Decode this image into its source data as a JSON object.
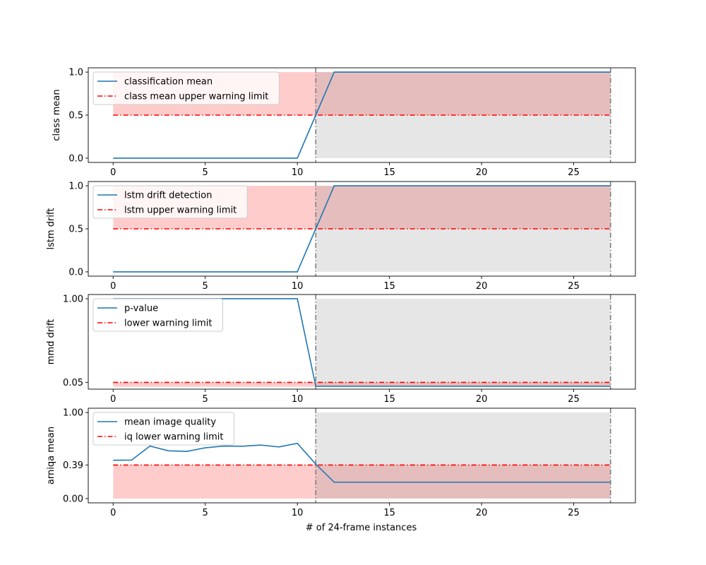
{
  "chart_data": [
    {
      "type": "line",
      "ylabel": "class mean",
      "xlabel": "",
      "xlim": [
        -1.35,
        28.35
      ],
      "ylim": [
        -0.05,
        1.05
      ],
      "xticks": [
        "0",
        "5",
        "10",
        "15",
        "20",
        "25"
      ],
      "yticks": [
        "0.0",
        "0.5",
        "1.0"
      ],
      "ytick_values": [
        0.0,
        0.5,
        1.0
      ],
      "shade_below": false,
      "warning_limit": 0.5,
      "drift_start": 11,
      "drift_end": 27,
      "legend_position": "upper-left",
      "series": [
        {
          "name": "classification mean",
          "color": "#1f77b4",
          "style": "solid",
          "x": [
            0,
            1,
            2,
            3,
            4,
            5,
            6,
            7,
            8,
            9,
            10,
            11,
            12,
            13,
            14,
            15,
            16,
            17,
            18,
            19,
            20,
            21,
            22,
            23,
            24,
            25,
            26,
            27
          ],
          "y": [
            0,
            0,
            0,
            0,
            0,
            0,
            0,
            0,
            0,
            0,
            0,
            0.5,
            1,
            1,
            1,
            1,
            1,
            1,
            1,
            1,
            1,
            1,
            1,
            1,
            1,
            1,
            1,
            1
          ]
        },
        {
          "name": "class mean upper warning limit",
          "color": "#ff0000",
          "style": "dashdot"
        }
      ]
    },
    {
      "type": "line",
      "ylabel": "lstm drift",
      "xlabel": "",
      "xlim": [
        -1.35,
        28.35
      ],
      "ylim": [
        -0.05,
        1.05
      ],
      "xticks": [
        "0",
        "5",
        "10",
        "15",
        "20",
        "25"
      ],
      "yticks": [
        "0.0",
        "0.5",
        "1.0"
      ],
      "ytick_values": [
        0.0,
        0.5,
        1.0
      ],
      "shade_below": false,
      "warning_limit": 0.5,
      "drift_start": 11,
      "drift_end": 27,
      "legend_position": "upper-left",
      "series": [
        {
          "name": "lstm drift detection",
          "color": "#1f77b4",
          "style": "solid",
          "x": [
            0,
            1,
            2,
            3,
            4,
            5,
            6,
            7,
            8,
            9,
            10,
            11,
            12,
            13,
            14,
            15,
            16,
            17,
            18,
            19,
            20,
            21,
            22,
            23,
            24,
            25,
            26,
            27
          ],
          "y": [
            0,
            0,
            0,
            0,
            0,
            0,
            0,
            0,
            0,
            0,
            0,
            0.5,
            1,
            1,
            1,
            1,
            1,
            1,
            1,
            1,
            1,
            1,
            1,
            1,
            1,
            1,
            1,
            1
          ]
        },
        {
          "name": "lstm upper warning limit",
          "color": "#ff0000",
          "style": "dashdot"
        }
      ]
    },
    {
      "type": "line",
      "ylabel": "mmd drift",
      "xlabel": "",
      "xlim": [
        -1.35,
        28.35
      ],
      "ylim": [
        -0.027,
        1.048
      ],
      "xticks": [
        "0",
        "5",
        "10",
        "15",
        "20",
        "25"
      ],
      "yticks": [
        "0.05",
        "1.00"
      ],
      "ytick_values": [
        0.05,
        1.0
      ],
      "shade_below": true,
      "warning_limit": 0.05,
      "drift_start": 11,
      "drift_end": 27,
      "legend_position": "upper-left",
      "series": [
        {
          "name": "p-value",
          "color": "#1f77b4",
          "style": "solid",
          "x": [
            0,
            1,
            2,
            3,
            4,
            5,
            6,
            7,
            8,
            9,
            10,
            11,
            12,
            13,
            14,
            15,
            16,
            17,
            18,
            19,
            20,
            21,
            22,
            23,
            24,
            25,
            26,
            27
          ],
          "y": [
            1,
            1,
            1,
            1,
            1,
            1,
            1,
            1,
            1,
            1,
            1,
            0.005,
            0.005,
            0.005,
            0.005,
            0.005,
            0.005,
            0.005,
            0.005,
            0.005,
            0.005,
            0.005,
            0.005,
            0.005,
            0.005,
            0.005,
            0.005,
            0.005
          ]
        },
        {
          "name": "lower warning limit",
          "color": "#ff0000",
          "style": "dashdot"
        }
      ]
    },
    {
      "type": "line",
      "ylabel": "arniqa mean",
      "xlabel": "# of 24-frame instances",
      "xlim": [
        -1.35,
        28.35
      ],
      "ylim": [
        -0.05,
        1.05
      ],
      "xticks": [
        "0",
        "5",
        "10",
        "15",
        "20",
        "25"
      ],
      "yticks": [
        "0.00",
        "0.39",
        "1.00"
      ],
      "ytick_values": [
        0.0,
        0.39,
        1.0
      ],
      "shade_below": true,
      "warning_limit": 0.39,
      "drift_start": 11,
      "drift_end": 27,
      "legend_position": "upper-left",
      "series": [
        {
          "name": "mean image quality",
          "color": "#1f77b4",
          "style": "solid",
          "x": [
            0,
            1,
            2,
            3,
            4,
            5,
            6,
            7,
            8,
            9,
            10,
            11,
            12,
            13,
            14,
            15,
            16,
            17,
            18,
            19,
            20,
            21,
            22,
            23,
            24,
            25,
            26,
            27
          ],
          "y": [
            0.445,
            0.447,
            0.61,
            0.555,
            0.548,
            0.59,
            0.61,
            0.608,
            0.622,
            0.6,
            0.642,
            0.4,
            0.19,
            0.19,
            0.19,
            0.19,
            0.19,
            0.19,
            0.19,
            0.19,
            0.19,
            0.19,
            0.19,
            0.19,
            0.19,
            0.19,
            0.19,
            0.19
          ]
        },
        {
          "name": "iq lower warning limit",
          "color": "#ff0000",
          "style": "dashdot"
        }
      ]
    }
  ]
}
